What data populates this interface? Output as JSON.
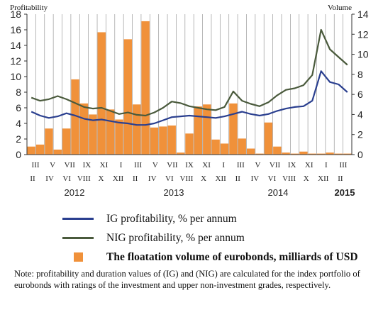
{
  "chart_data": {
    "type": "bar+line",
    "left_axis_title": "Profitability",
    "right_axis_title": "Volume",
    "left_ticks": [
      "0",
      "2",
      "4",
      "6",
      "8",
      "10",
      "12",
      "14",
      "16",
      "18"
    ],
    "right_ticks": [
      "0",
      "2",
      "4",
      "6",
      "8",
      "10",
      "12",
      "14"
    ],
    "ylim_left": [
      0,
      18
    ],
    "ylim_right": [
      0,
      14
    ],
    "grid": "vertical",
    "months_top": [
      "III",
      "V",
      "VII",
      "IX",
      "XI",
      "I",
      "III",
      "V",
      "VII",
      "IX",
      "XI",
      "I",
      "III",
      "V",
      "VII",
      "IX",
      "XI",
      "I",
      "III"
    ],
    "months_bottom": [
      "II",
      "IV",
      "VI",
      "VIII",
      "X",
      "XII",
      "II",
      "IV",
      "VI",
      "VIII",
      "X",
      "XII",
      "II",
      "IV",
      "VI",
      "VIII",
      "X",
      "XII",
      "II"
    ],
    "years": [
      "2012",
      "2013",
      "2014",
      "2015"
    ],
    "bars": {
      "name": "The floatation volume of eurobonds, milliards of USD",
      "color": "#f0913a",
      "axis": "right",
      "values": [
        0.8,
        1.0,
        2.6,
        0.5,
        2.6,
        7.5,
        5.1,
        4.0,
        12.2,
        4.5,
        3.5,
        11.5,
        5.0,
        13.3,
        2.7,
        2.8,
        2.9,
        0.2,
        2.1,
        4.8,
        5.0,
        1.5,
        1.1,
        5.1,
        1.6,
        0.6,
        0.1,
        3.2,
        0.8,
        0.2,
        0.1,
        0.3,
        0.1,
        0.1,
        0.2,
        0.1,
        0.1
      ]
    },
    "series": [
      {
        "name": "IG profitability, % per annum",
        "color": "#2a3f8f",
        "axis": "left",
        "points": [
          [
            0,
            5.5
          ],
          [
            1,
            5.0
          ],
          [
            2,
            4.7
          ],
          [
            3,
            4.9
          ],
          [
            4,
            5.3
          ],
          [
            5,
            5.0
          ],
          [
            6,
            4.6
          ],
          [
            7,
            4.4
          ],
          [
            8,
            4.5
          ],
          [
            9,
            4.3
          ],
          [
            10,
            4.1
          ],
          [
            11,
            4.0
          ],
          [
            12,
            3.8
          ],
          [
            13,
            3.8
          ],
          [
            14,
            4.0
          ],
          [
            15,
            4.4
          ],
          [
            16,
            4.8
          ],
          [
            17,
            4.9
          ],
          [
            18,
            5.0
          ],
          [
            19,
            4.9
          ],
          [
            20,
            4.8
          ],
          [
            21,
            4.7
          ],
          [
            22,
            4.9
          ],
          [
            23,
            5.2
          ],
          [
            24,
            5.5
          ],
          [
            25,
            5.2
          ],
          [
            26,
            5.0
          ],
          [
            27,
            5.2
          ],
          [
            28,
            5.6
          ],
          [
            29,
            5.9
          ],
          [
            30,
            6.1
          ],
          [
            31,
            6.2
          ],
          [
            32,
            6.9
          ],
          [
            33,
            10.7
          ],
          [
            34,
            9.3
          ],
          [
            35,
            9.0
          ],
          [
            36,
            8.0
          ]
        ]
      },
      {
        "name": "NIG profitability, % per annum",
        "color": "#4a5a3c",
        "axis": "left",
        "points": [
          [
            0,
            7.3
          ],
          [
            1,
            6.9
          ],
          [
            2,
            7.1
          ],
          [
            3,
            7.5
          ],
          [
            4,
            7.1
          ],
          [
            5,
            6.6
          ],
          [
            6,
            6.1
          ],
          [
            7,
            5.9
          ],
          [
            8,
            6.0
          ],
          [
            9,
            5.6
          ],
          [
            10,
            5.2
          ],
          [
            11,
            5.4
          ],
          [
            12,
            5.1
          ],
          [
            13,
            5.0
          ],
          [
            14,
            5.4
          ],
          [
            15,
            6.0
          ],
          [
            16,
            6.8
          ],
          [
            17,
            6.6
          ],
          [
            18,
            6.2
          ],
          [
            19,
            6.0
          ],
          [
            20,
            5.8
          ],
          [
            21,
            5.7
          ],
          [
            22,
            6.1
          ],
          [
            23,
            8.1
          ],
          [
            24,
            6.9
          ],
          [
            25,
            6.5
          ],
          [
            26,
            6.2
          ],
          [
            27,
            6.7
          ],
          [
            28,
            7.6
          ],
          [
            29,
            8.3
          ],
          [
            30,
            8.5
          ],
          [
            31,
            8.9
          ],
          [
            32,
            10.2
          ],
          [
            33,
            16.0
          ],
          [
            34,
            13.5
          ],
          [
            35,
            12.5
          ],
          [
            36,
            11.5
          ]
        ]
      }
    ]
  },
  "legend": {
    "ig_label": "IG profitability, % per annum",
    "nig_label": "NIG profitability, % per annum",
    "bar_label": "The floatation volume of eurobonds, milliards of USD"
  },
  "note": "Note: profitability and duration values of (IG) and (NIG) are calculated for the index portfolio of eurobonds with ratings of the investment and upper non-investment grades, respectively."
}
